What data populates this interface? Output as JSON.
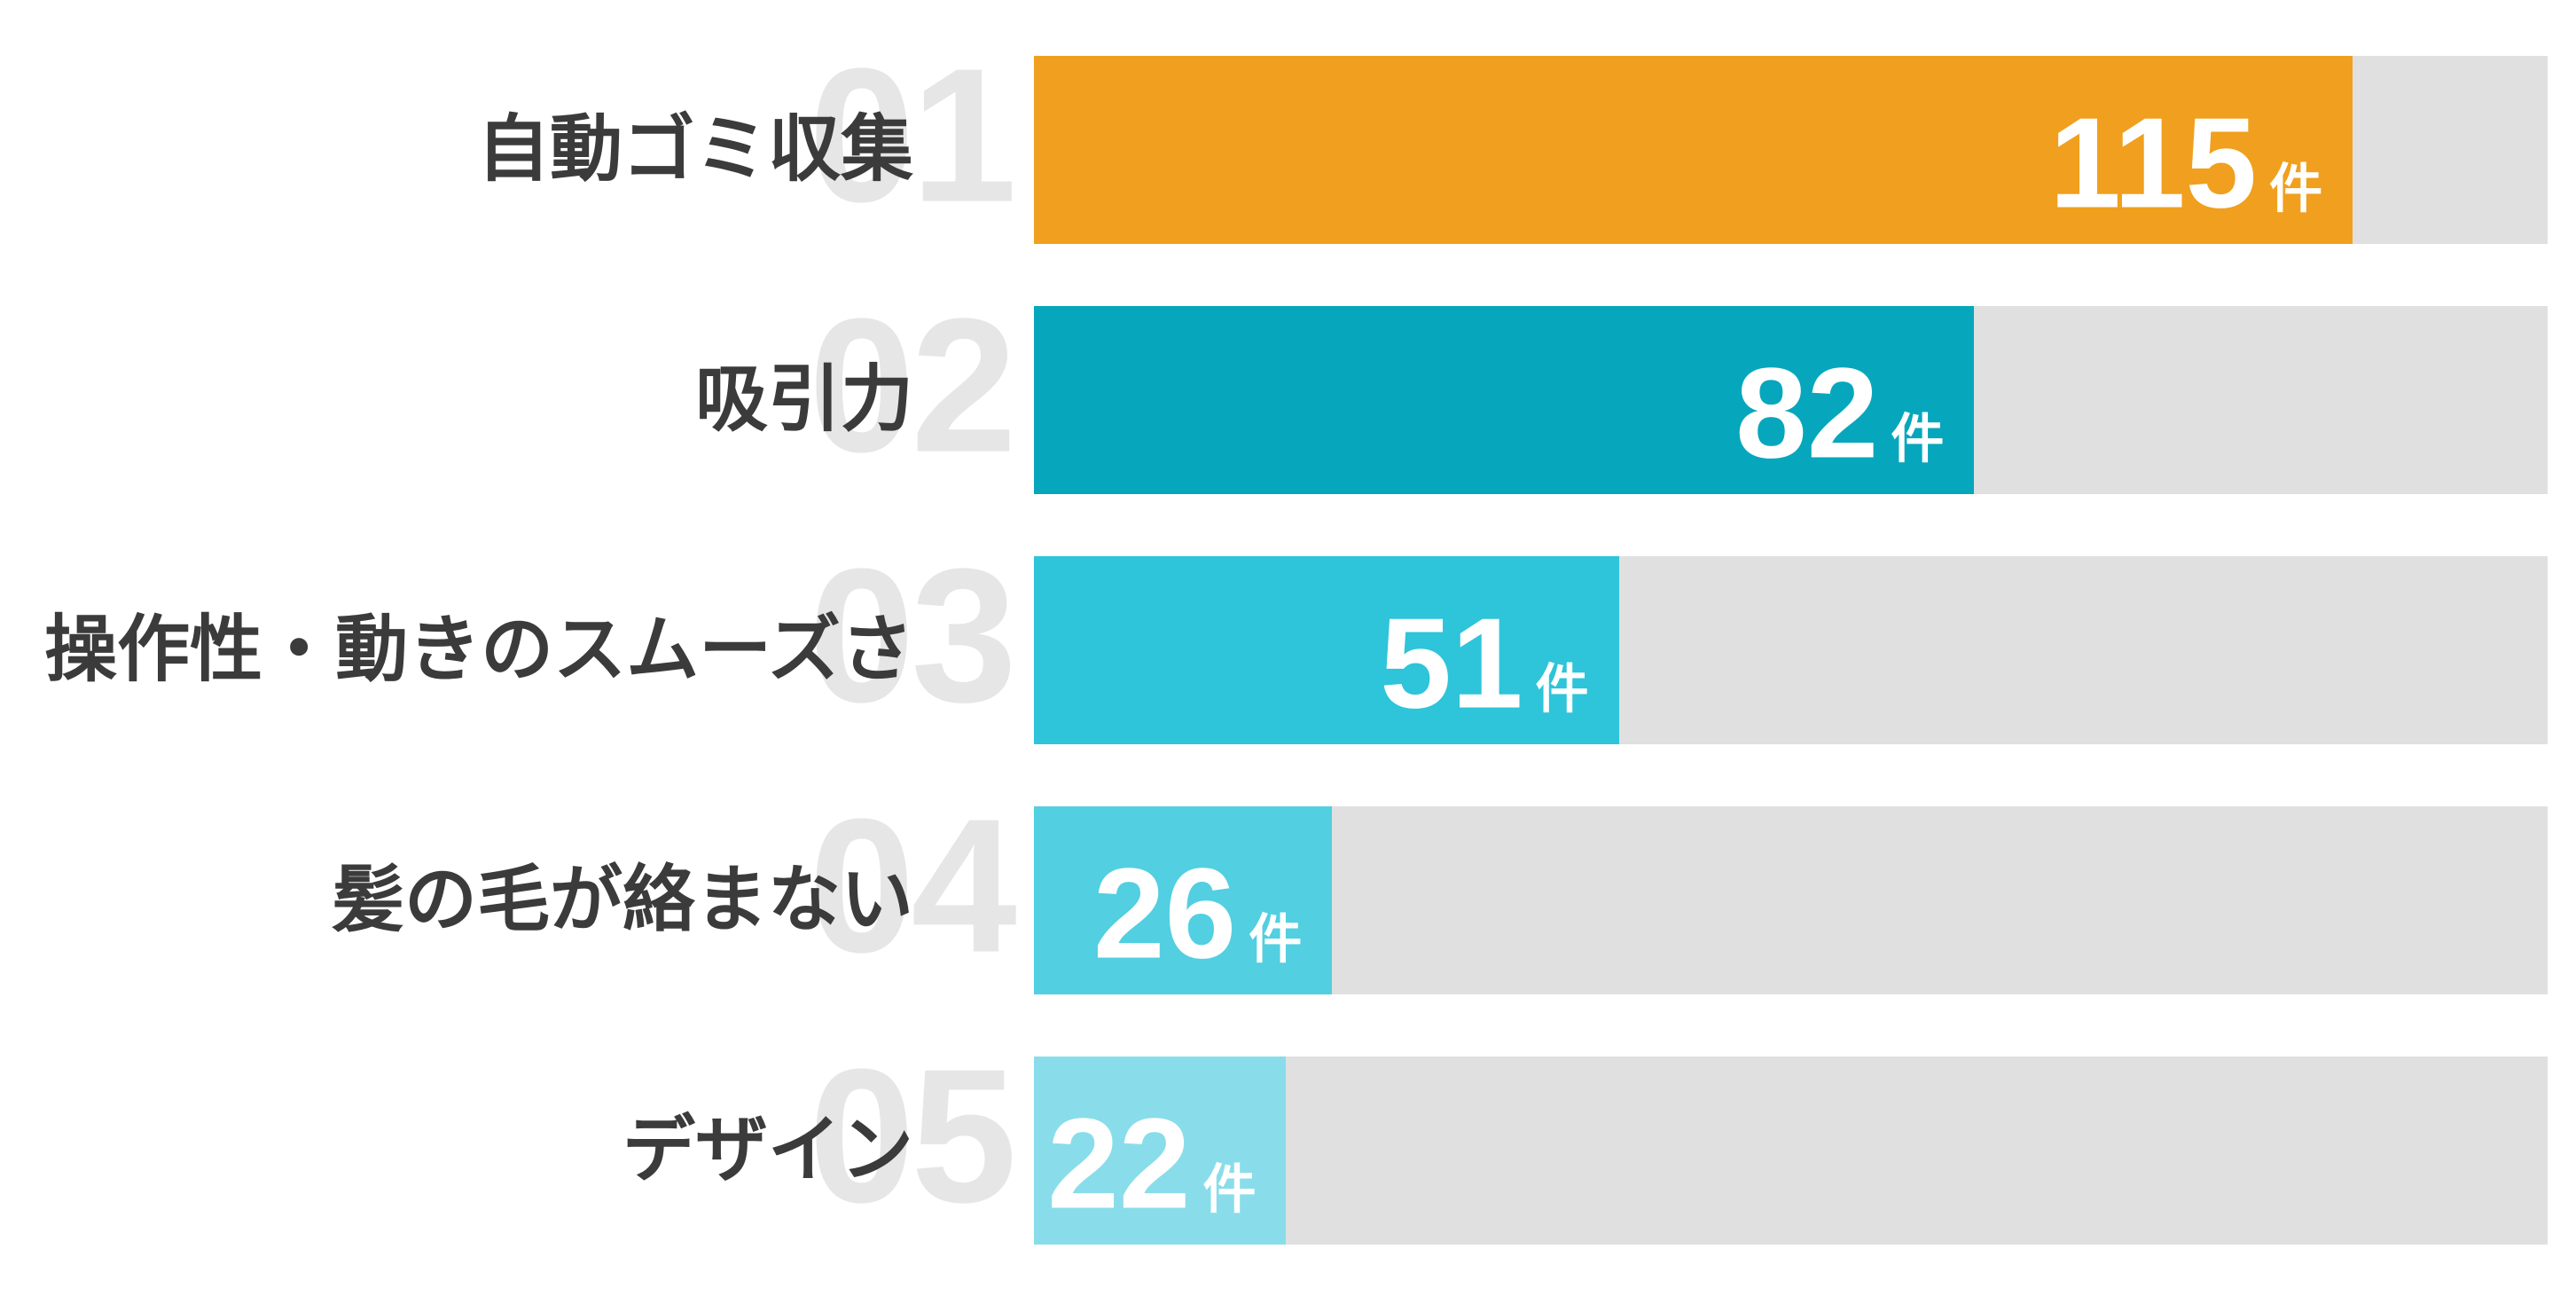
{
  "chart_data": {
    "type": "bar",
    "orientation": "horizontal",
    "title": "",
    "categories": [
      "自動ゴミ収集",
      "吸引力",
      "操作性・動きのスムーズさ",
      "髪の毛が絡まない",
      "デザイン"
    ],
    "values": [
      115,
      82,
      51,
      26,
      22
    ],
    "value_unit": "件",
    "rank_labels": [
      "01",
      "02",
      "03",
      "04",
      "05"
    ],
    "xlim": [
      0,
      132
    ],
    "grid": false,
    "legend": false,
    "colors": {
      "bar_colors": [
        "#F0A01E",
        "#06A7BC",
        "#2EC4D9",
        "#52CFE0",
        "#89DDEA"
      ],
      "track_color": "#E0E0E0",
      "rank_number_color": "#E6E6E6",
      "label_color": "#3B3B3B",
      "value_text_color": "#FFFFFF"
    }
  }
}
